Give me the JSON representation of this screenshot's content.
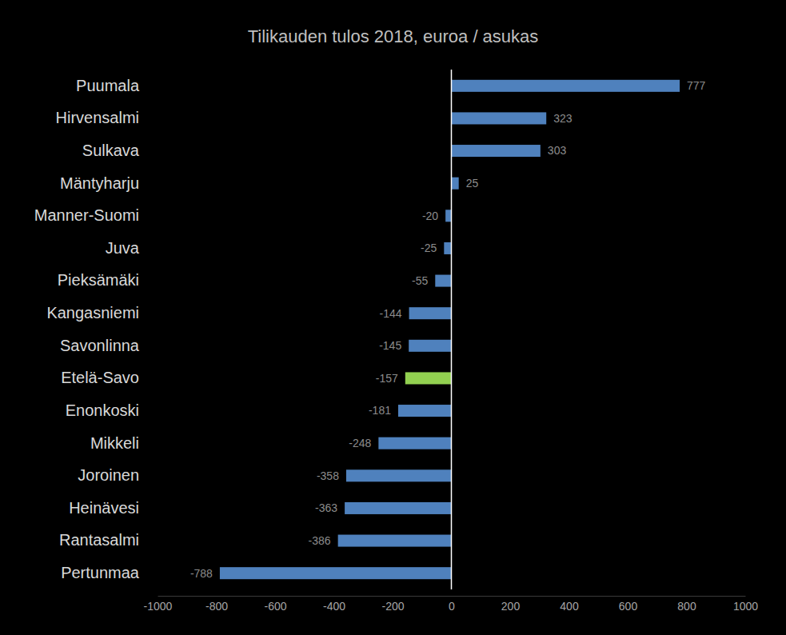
{
  "chart_data": {
    "type": "bar",
    "orientation": "horizontal",
    "title": "Tilikauden tulos 2018, euroa / asukas",
    "categories": [
      "Puumala",
      "Hirvensalmi",
      "Sulkava",
      "Mäntyharju",
      "Manner-Suomi",
      "Juva",
      "Pieksämäki",
      "Kangasniemi",
      "Savonlinna",
      "Etelä-Savo",
      "Enonkoski",
      "Mikkeli",
      "Joroinen",
      "Heinävesi",
      "Rantasalmi",
      "Pertunmaa"
    ],
    "values": [
      777,
      323,
      303,
      25,
      -20,
      -25,
      -55,
      -144,
      -145,
      -157,
      -181,
      -248,
      -358,
      -363,
      -386,
      -788
    ],
    "colors": [
      "#4f81bd",
      "#4f81bd",
      "#4f81bd",
      "#4f81bd",
      "#4f81bd",
      "#4f81bd",
      "#4f81bd",
      "#4f81bd",
      "#4f81bd",
      "#92d050",
      "#4f81bd",
      "#4f81bd",
      "#4f81bd",
      "#4f81bd",
      "#4f81bd",
      "#4f81bd"
    ],
    "xlim": [
      -1000,
      1000
    ],
    "xticks": [
      -1000,
      -800,
      -600,
      -400,
      -200,
      0,
      200,
      400,
      600,
      800,
      1000
    ],
    "data_labels": true,
    "grid": false
  }
}
